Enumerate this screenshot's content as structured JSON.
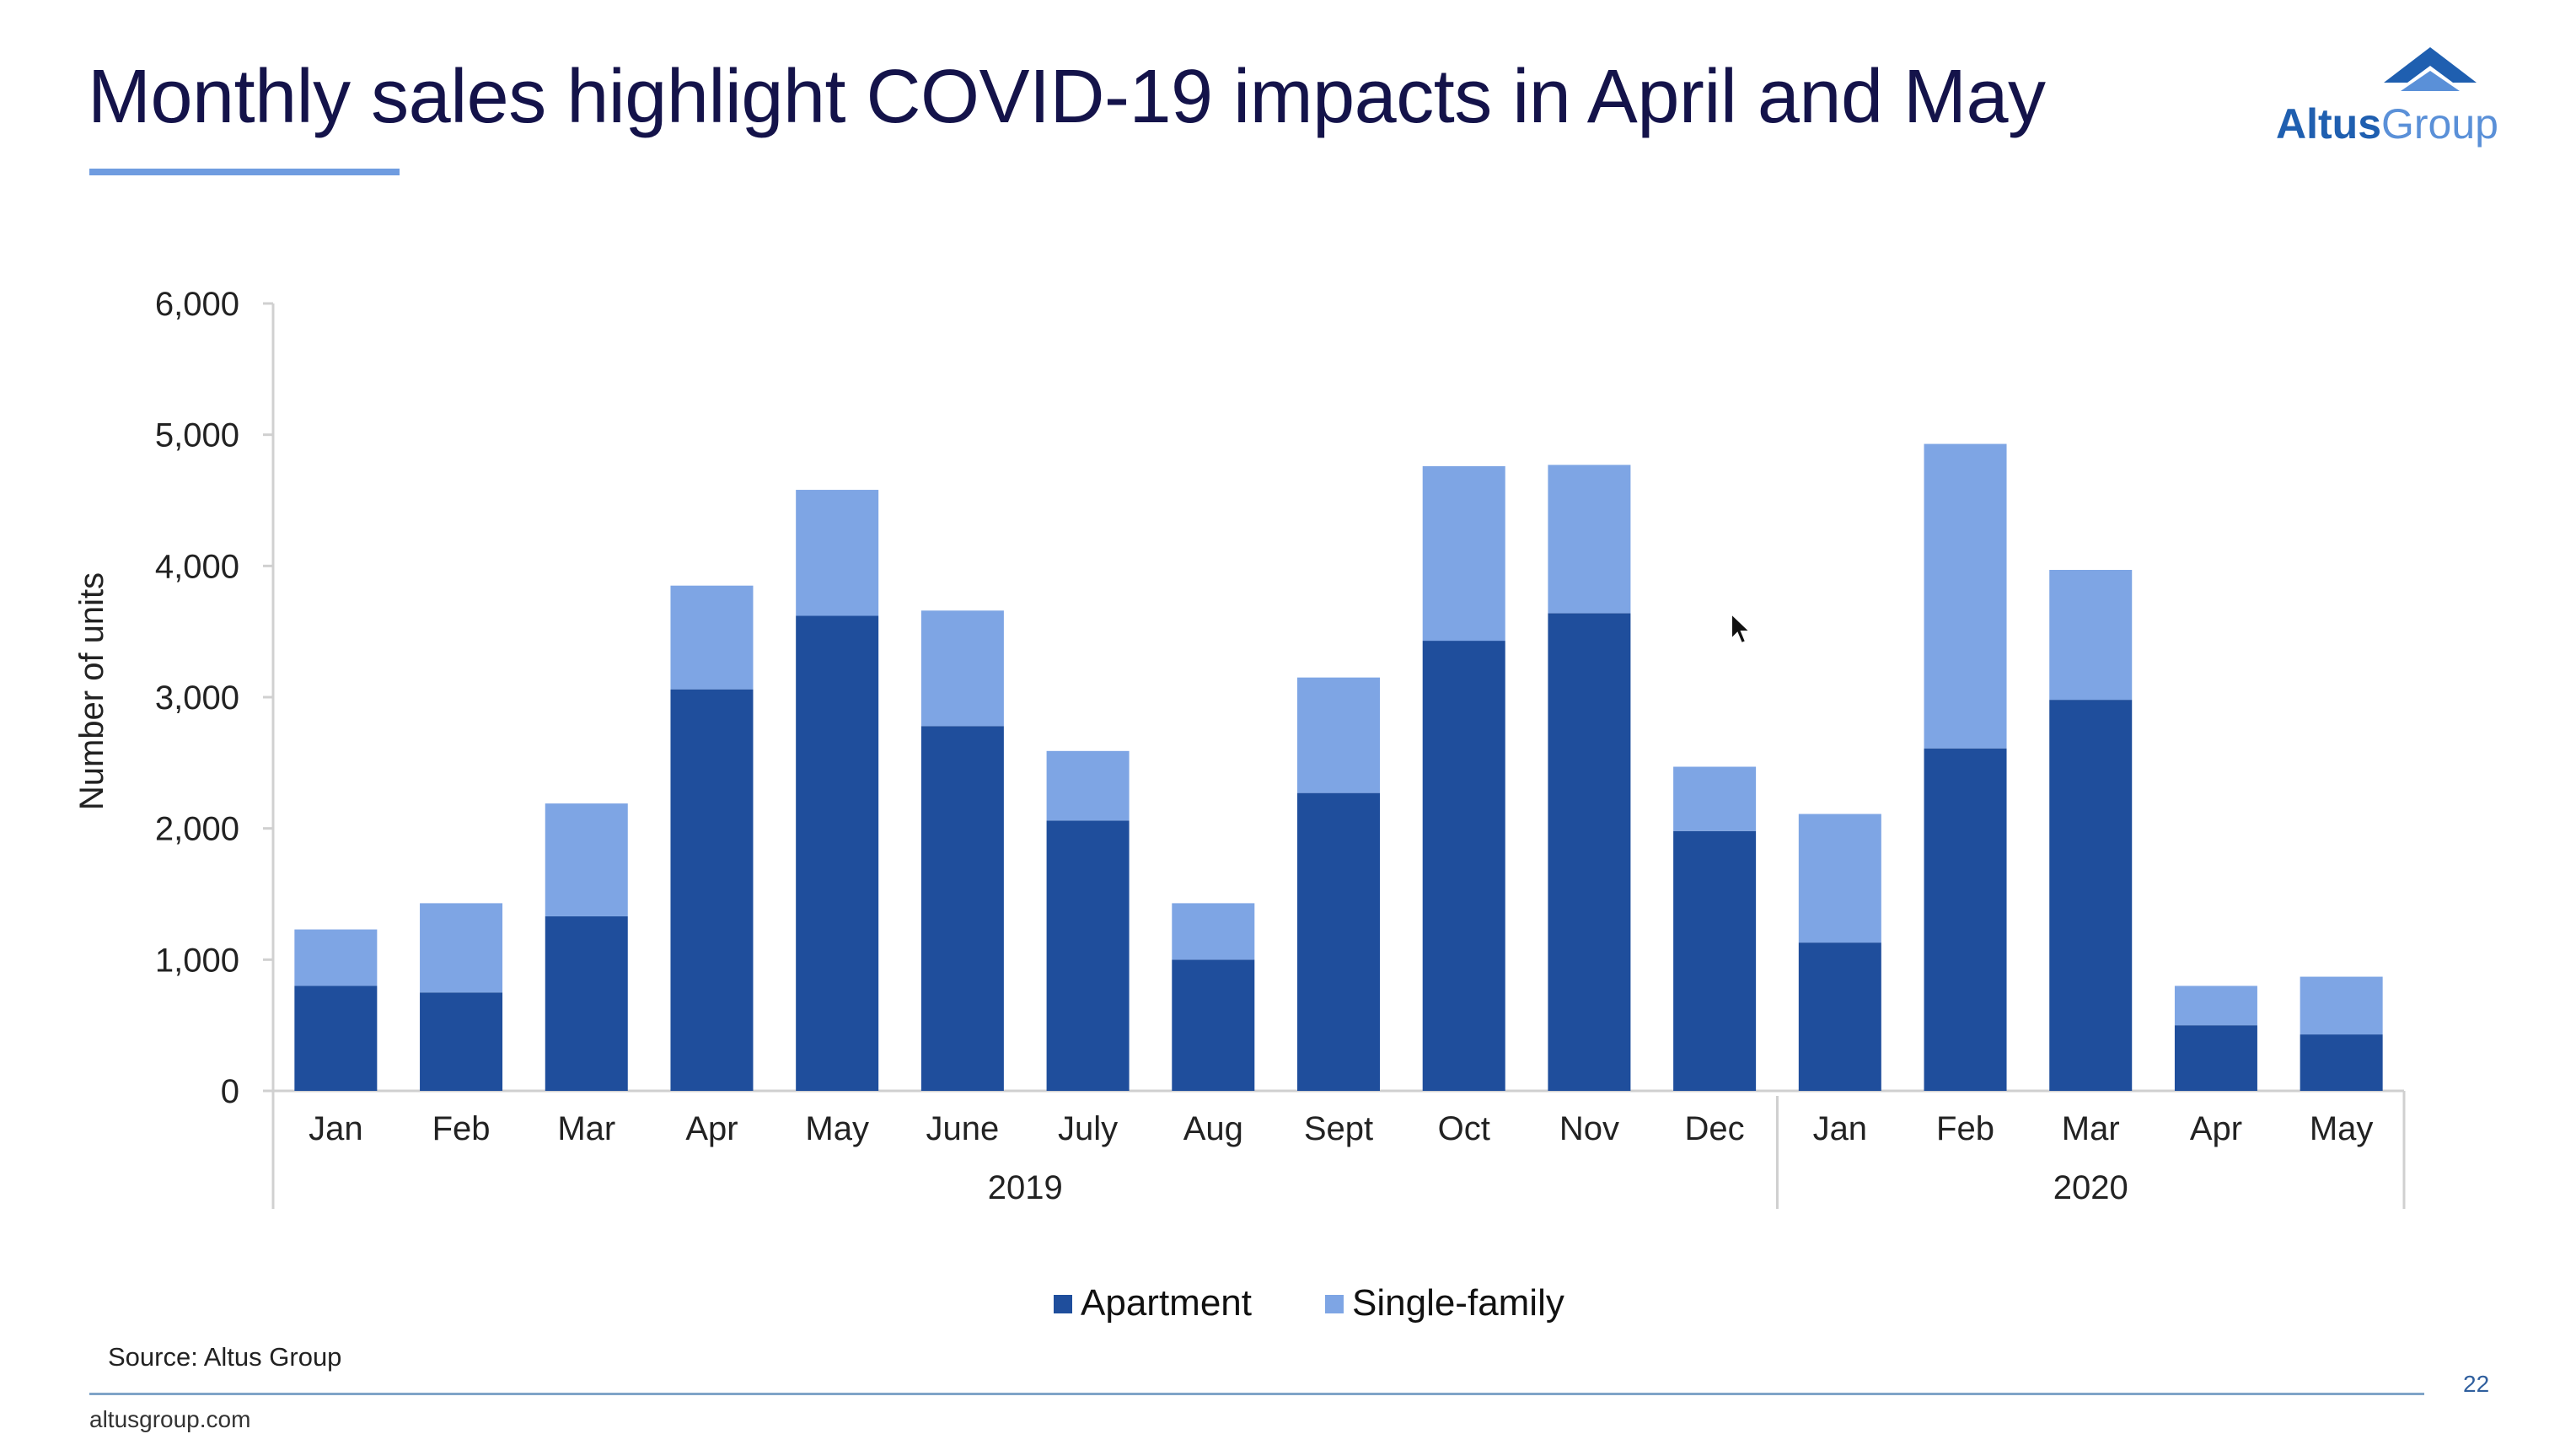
{
  "slide": {
    "title": "Monthly sales highlight COVID-19 impacts in April and May",
    "source": "Source: Altus Group",
    "footer_url": "altusgroup.com",
    "page_number": "22"
  },
  "logo": {
    "word1": "Altus",
    "word2": "Group",
    "icon": "altus-group-mountain-icon"
  },
  "colors": {
    "apartment": "#1f4e9c",
    "single_family": "#7ea5e4",
    "title": "#14134a",
    "accent": "#6f9ce0"
  },
  "chart_data": {
    "type": "bar",
    "stacked": true,
    "title": "",
    "xlabel": "",
    "ylabel": "Number of units",
    "ylim": [
      0,
      6000
    ],
    "yticks": [
      0,
      1000,
      2000,
      3000,
      4000,
      5000,
      6000
    ],
    "ytick_labels": [
      "0",
      "1,000",
      "2,000",
      "3,000",
      "4,000",
      "5,000",
      "6,000"
    ],
    "categories": [
      "Jan",
      "Feb",
      "Mar",
      "Apr",
      "May",
      "June",
      "July",
      "Aug",
      "Sept",
      "Oct",
      "Nov",
      "Dec",
      "Jan",
      "Feb",
      "Mar",
      "Apr",
      "May"
    ],
    "groups": [
      {
        "label": "2019",
        "count": 12
      },
      {
        "label": "2020",
        "count": 5
      }
    ],
    "series": [
      {
        "name": "Apartment",
        "values": [
          800,
          750,
          1330,
          3060,
          3620,
          2780,
          2060,
          1000,
          2270,
          3430,
          3640,
          1980,
          1130,
          2610,
          2980,
          500,
          430
        ]
      },
      {
        "name": "Single-family",
        "values": [
          430,
          680,
          860,
          790,
          960,
          880,
          530,
          430,
          880,
          1330,
          1130,
          490,
          980,
          2320,
          990,
          300,
          440
        ]
      }
    ],
    "legend_position": "bottom",
    "grid": false
  }
}
